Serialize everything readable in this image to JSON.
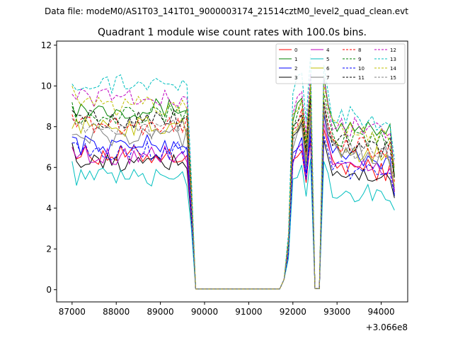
{
  "figure": {
    "suptitle": "Data file: modeM0/AS1T03_141T01_9000003174_21514cztM0_level2_quad_clean.evt",
    "title": "Quadrant 1 module wise count rates with 100.0s bins.",
    "x_offset_label": "+3.066e8"
  },
  "chart_data": {
    "type": "line",
    "title": "Quadrant 1 module wise count rates with 100.0s bins.",
    "xlabel": "",
    "ylabel": "",
    "xlim": [
      86650,
      94600
    ],
    "ylim": [
      -0.6,
      12.2
    ],
    "x_offset": 306600000,
    "x_ticks": [
      87000,
      88000,
      89000,
      90000,
      91000,
      92000,
      93000,
      94000
    ],
    "y_ticks": [
      0,
      2,
      4,
      6,
      8,
      10,
      12
    ],
    "grid": false,
    "legend_position": "top-right",
    "legend_columns": 4,
    "x": [
      87000,
      87100,
      87200,
      87300,
      87400,
      87500,
      87600,
      87700,
      87800,
      87900,
      88000,
      88100,
      88200,
      88300,
      88400,
      88500,
      88600,
      88700,
      88800,
      88900,
      89000,
      89100,
      89200,
      89300,
      89400,
      89500,
      89600,
      89700,
      89800,
      89900,
      90000,
      90100,
      90200,
      90300,
      90400,
      90500,
      90600,
      90700,
      90800,
      90900,
      91000,
      91100,
      91200,
      91300,
      91400,
      91500,
      91600,
      91700,
      91800,
      91900,
      92000,
      92100,
      92200,
      92300,
      92400,
      92500,
      92600,
      92700,
      92800,
      92900,
      93000,
      93100,
      93200,
      93300,
      93400,
      93500,
      93600,
      93700,
      93800,
      93900,
      94000,
      94100,
      94200,
      94300
    ],
    "series": [
      {
        "name": "0",
        "color": "#ff0000",
        "dash": "solid",
        "level": 6.6,
        "gap": 7.0,
        "r": 7.5,
        "start": 7.0,
        "end": 4.8
      },
      {
        "name": "1",
        "color": "#008000",
        "dash": "solid",
        "level": 8.9,
        "gap": 9.6,
        "r": 10.0,
        "start": 9.0,
        "end": 5.5
      },
      {
        "name": "2",
        "color": "#0000ff",
        "dash": "solid",
        "level": 7.1,
        "gap": 7.6,
        "r": 8.2,
        "start": 7.5,
        "end": 4.6
      },
      {
        "name": "3",
        "color": "#000000",
        "dash": "solid",
        "level": 6.2,
        "gap": 8.3,
        "r": 7.0,
        "start": 7.2,
        "end": 4.5
      },
      {
        "name": "4",
        "color": "#bf00bf",
        "dash": "solid",
        "level": 6.6,
        "gap": 7.2,
        "r": 7.8,
        "start": 7.0,
        "end": 4.9
      },
      {
        "name": "5",
        "color": "#00bfbf",
        "dash": "solid",
        "level": 5.5,
        "gap": 6.1,
        "r": 6.0,
        "start": 6.3,
        "end": 3.9
      },
      {
        "name": "6",
        "color": "#bfbf00",
        "dash": "solid",
        "level": 8.0,
        "gap": 8.4,
        "r": 8.4,
        "start": 7.9,
        "end": 5.1
      },
      {
        "name": "7",
        "color": "#808080",
        "dash": "solid",
        "level": 7.5,
        "gap": 8.0,
        "r": 8.4,
        "start": 7.6,
        "end": 5.0
      },
      {
        "name": "8",
        "color": "#ff0000",
        "dash": "dashed",
        "level": 8.1,
        "gap": 8.8,
        "r": 8.8,
        "start": 8.6,
        "end": 5.3
      },
      {
        "name": "9",
        "color": "#008000",
        "dash": "dashed",
        "level": 8.6,
        "gap": 9.2,
        "r": 9.2,
        "start": 9.2,
        "end": 5.6
      },
      {
        "name": "10",
        "color": "#0000ff",
        "dash": "dashed",
        "level": 6.8,
        "gap": 7.2,
        "r": 7.2,
        "start": 7.2,
        "end": 4.7
      },
      {
        "name": "11",
        "color": "#000000",
        "dash": "dashed",
        "level": 8.4,
        "gap": 9.0,
        "r": 8.8,
        "start": 8.8,
        "end": 5.5
      },
      {
        "name": "12",
        "color": "#bf00bf",
        "dash": "dashed",
        "level": 9.4,
        "gap": 10.1,
        "r": 9.9,
        "start": 9.6,
        "end": 6.0
      },
      {
        "name": "13",
        "color": "#00bfbf",
        "dash": "dashed",
        "level": 10.1,
        "gap": 11.0,
        "r": 10.5,
        "start": 10.1,
        "end": 6.4
      },
      {
        "name": "14",
        "color": "#bfbf00",
        "dash": "dashed",
        "level": 9.0,
        "gap": 9.6,
        "r": 9.6,
        "start": 10.0,
        "end": 6.0
      },
      {
        "name": "15",
        "color": "#808080",
        "dash": "dashed",
        "level": 7.9,
        "gap": 8.5,
        "r": 8.5,
        "start": 8.4,
        "end": 5.4
      }
    ]
  }
}
